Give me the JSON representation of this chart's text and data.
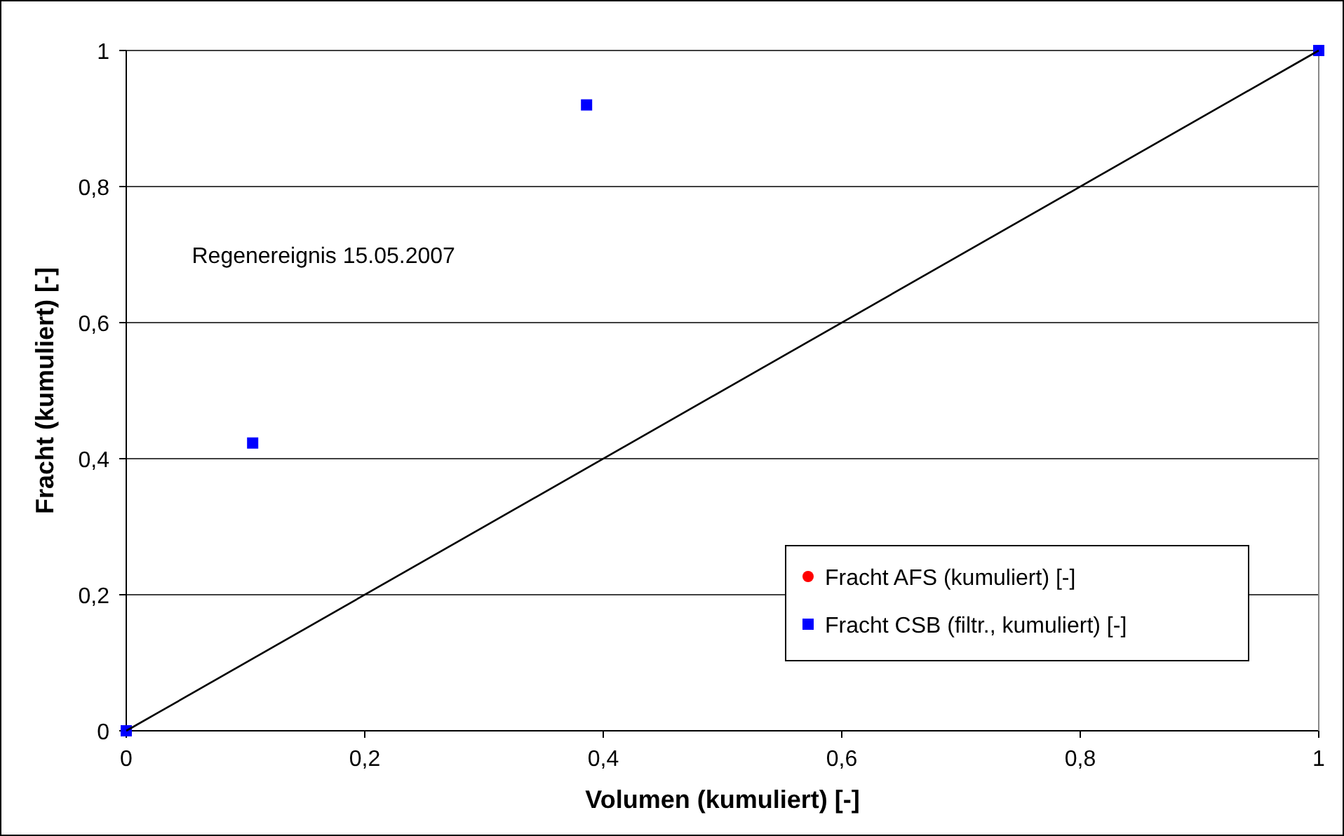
{
  "chart_data": {
    "type": "scatter",
    "xlabel": "Volumen (kumuliert) [-]",
    "ylabel": "Fracht (kumuliert) [-]",
    "x": [
      0,
      0.106,
      0.386,
      1
    ],
    "series": [
      {
        "name": "Fracht AFS (kumuliert) [-]",
        "color": "#ff0000",
        "marker": "circle",
        "values": [
          null,
          null,
          null,
          null
        ]
      },
      {
        "name": "Fracht CSB (filtr., kumuliert) [-]",
        "color": "#0000ff",
        "marker": "square",
        "values": [
          0,
          0.423,
          0.92,
          1
        ]
      },
      {
        "type": "line",
        "color": "#000000",
        "x": [
          0,
          1
        ],
        "values": [
          0,
          1
        ],
        "marker": "none",
        "line_style": "solid"
      }
    ],
    "annotations": [
      "Regenereignis 15.05.2007"
    ],
    "xlim": [
      0,
      1
    ],
    "ylim": [
      0,
      1
    ],
    "xticks": [
      0,
      {
        "value": 0.2,
        "label": "0,2"
      },
      {
        "value": 0.4,
        "label": "0,4"
      },
      {
        "value": 0.6,
        "label": "0,6"
      },
      {
        "value": 0.8,
        "label": "0,8"
      },
      1
    ],
    "yticks": [
      0,
      {
        "value": 0.2,
        "label": "0,2"
      },
      {
        "value": 0.4,
        "label": "0,4"
      },
      {
        "value": 0.6,
        "label": "0,6"
      },
      {
        "value": 0.8,
        "label": "0,8"
      },
      1
    ],
    "grid": "y",
    "legend": "bottom right"
  }
}
